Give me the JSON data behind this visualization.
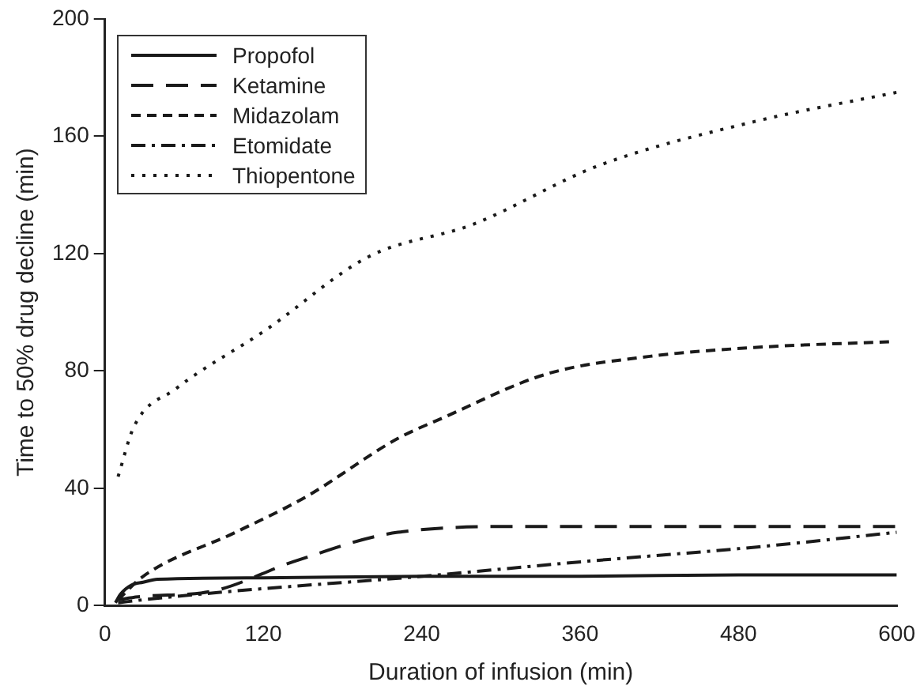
{
  "chart_data": {
    "type": "line",
    "xlabel": "Duration of infusion (min)",
    "ylabel": "Time to 50% drug decline (min)",
    "xlim": [
      0,
      600
    ],
    "ylim": [
      0,
      200
    ],
    "xticks": [
      0,
      120,
      240,
      360,
      480,
      600
    ],
    "yticks": [
      0,
      40,
      80,
      120,
      160,
      200
    ],
    "grid": false,
    "legend": "top left",
    "marker": "none",
    "series": [
      {
        "name": "Propofol",
        "color": "#1a1a1a",
        "line_style": "solid",
        "x": [
          8,
          12,
          20,
          29,
          40,
          120,
          240,
          360,
          480,
          600
        ],
        "values": [
          1,
          4,
          7,
          8,
          9,
          9.5,
          10,
          10,
          10.5,
          10.5
        ]
      },
      {
        "name": "Ketamine",
        "color": "#1a1a1a",
        "line_style": "dashed",
        "x": [
          10,
          25,
          82,
          143,
          222,
          319,
          420,
          600
        ],
        "values": [
          2,
          3,
          5,
          15,
          25,
          27,
          27,
          27
        ]
      },
      {
        "name": "Midazolam",
        "color": "#1a1a1a",
        "line_style": "dashed",
        "x": [
          10,
          29,
          99,
          152,
          222,
          256,
          335,
          413,
          492,
          595
        ],
        "values": [
          2,
          10,
          25,
          37,
          57,
          64,
          79,
          85,
          88,
          90
        ]
      },
      {
        "name": "Etomidate",
        "color": "#1a1a1a",
        "line_style": "dashed",
        "x": [
          10,
          29,
          99,
          240,
          362,
          494,
          600
        ],
        "values": [
          1,
          2,
          5,
          10,
          15,
          20,
          25
        ]
      },
      {
        "name": "Thiopentone",
        "color": "#1a1a1a",
        "line_style": "dotted",
        "x": [
          10,
          22,
          54,
          122,
          200,
          279,
          374,
          492,
          600
        ],
        "values": [
          44,
          61,
          74,
          94,
          119,
          130,
          150,
          165,
          175
        ]
      }
    ]
  }
}
